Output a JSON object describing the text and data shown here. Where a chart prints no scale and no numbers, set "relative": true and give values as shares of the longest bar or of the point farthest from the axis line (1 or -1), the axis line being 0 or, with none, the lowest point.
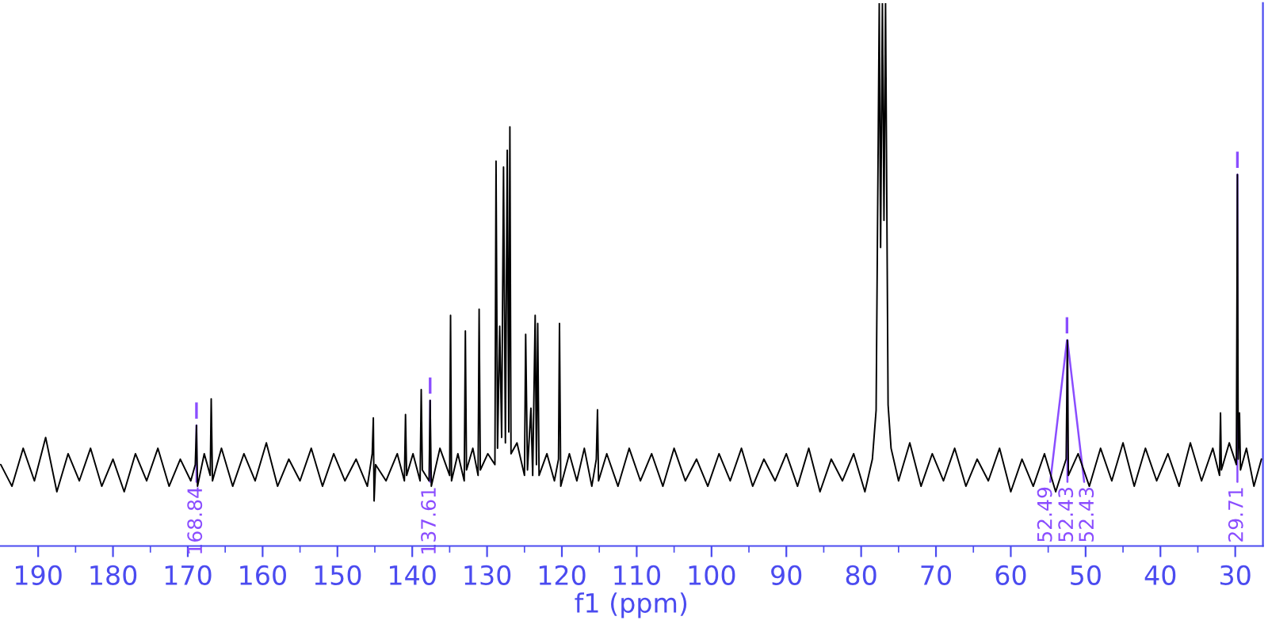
{
  "chart_data": {
    "type": "line",
    "relative": true,
    "xlabel": "f1 (ppm)",
    "xlim": [
      195.1,
      26.3
    ],
    "xticks": [
      190,
      180,
      170,
      160,
      150,
      140,
      130,
      120,
      110,
      100,
      90,
      80,
      70,
      60,
      50,
      40,
      30,
      {
        "value": 185,
        "label": null
      },
      {
        "value": 175,
        "label": null
      },
      {
        "value": 165,
        "label": null
      },
      {
        "value": 155,
        "label": null
      },
      {
        "value": 145,
        "label": null
      },
      {
        "value": 135,
        "label": null
      },
      {
        "value": 125,
        "label": null
      },
      {
        "value": 115,
        "label": null
      },
      {
        "value": 105,
        "label": null
      },
      {
        "value": 95,
        "label": null
      },
      {
        "value": 85,
        "label": null
      },
      {
        "value": 75,
        "label": null
      },
      {
        "value": 65,
        "label": null
      },
      {
        "value": 55,
        "label": null
      },
      {
        "value": 45,
        "label": null
      },
      {
        "value": 35,
        "label": null
      }
    ],
    "tick_labels": "x",
    "grid": false,
    "legend": false,
    "marker": "none",
    "line_style": "solid",
    "series": [
      {
        "color": "#000000",
        "x": [
          195.0,
          193.5,
          192.0,
          190.5,
          189.0,
          187.5,
          186.0,
          184.5,
          183.0,
          181.5,
          180.0,
          178.5,
          177.0,
          175.5,
          174.0,
          172.5,
          171.0,
          169.6,
          169.0,
          168.84,
          168.7,
          167.8,
          167.0,
          166.87,
          166.7,
          165.5,
          164.0,
          162.5,
          161.0,
          159.5,
          158.0,
          156.5,
          155.0,
          153.5,
          152.0,
          150.5,
          149.0,
          147.5,
          146.0,
          145.35,
          145.2,
          145.1,
          144.9,
          143.5,
          142.0,
          141.05,
          140.9,
          140.75,
          139.9,
          138.95,
          138.8,
          138.65,
          137.75,
          137.61,
          137.45,
          136.3,
          135.0,
          134.88,
          134.75,
          133.9,
          133.05,
          132.9,
          132.75,
          131.9,
          131.2,
          131.06,
          130.9,
          129.9,
          128.95,
          128.8,
          128.6,
          128.31,
          128.05,
          127.8,
          127.55,
          127.3,
          127.1,
          126.95,
          126.8,
          126.0,
          125.0,
          124.84,
          124.6,
          124.14,
          123.9,
          123.57,
          123.4,
          123.23,
          123.05,
          122.0,
          121.0,
          120.45,
          120.32,
          120.15,
          119.0,
          118.0,
          117.0,
          116.0,
          115.4,
          115.24,
          115.1,
          114.0,
          112.5,
          111.0,
          109.5,
          108.0,
          106.5,
          105.0,
          103.5,
          102.0,
          100.5,
          99.0,
          97.5,
          96.0,
          94.5,
          93.0,
          91.5,
          90.0,
          88.5,
          87.0,
          85.5,
          84.0,
          82.5,
          81.0,
          79.5,
          78.5,
          78.0,
          77.58,
          77.4,
          77.16,
          76.95,
          76.74,
          76.4,
          76.0,
          75.0,
          73.5,
          72.0,
          70.5,
          69.0,
          67.5,
          66.0,
          64.5,
          63.0,
          61.5,
          60.0,
          58.5,
          57.0,
          55.5,
          54.0,
          52.6,
          52.43,
          52.3,
          51.0,
          49.5,
          48.0,
          46.5,
          45.0,
          43.5,
          42.0,
          40.5,
          39.0,
          37.5,
          36.0,
          34.5,
          33.0,
          32.1,
          31.97,
          31.85,
          30.8,
          29.85,
          29.71,
          29.6,
          29.43,
          29.3,
          28.5,
          27.5,
          26.5
        ],
        "values": [
          0.15,
          0.11,
          0.18,
          0.12,
          0.2,
          0.1,
          0.17,
          0.12,
          0.18,
          0.11,
          0.16,
          0.1,
          0.17,
          0.12,
          0.18,
          0.11,
          0.16,
          0.12,
          0.15,
          0.222,
          0.11,
          0.17,
          0.13,
          0.271,
          0.12,
          0.18,
          0.11,
          0.17,
          0.12,
          0.19,
          0.11,
          0.16,
          0.12,
          0.18,
          0.11,
          0.17,
          0.12,
          0.16,
          0.11,
          0.17,
          0.236,
          0.083,
          0.15,
          0.12,
          0.17,
          0.12,
          0.242,
          0.13,
          0.17,
          0.12,
          0.288,
          0.14,
          0.12,
          0.268,
          0.11,
          0.18,
          0.13,
          0.425,
          0.12,
          0.17,
          0.12,
          0.396,
          0.14,
          0.18,
          0.13,
          0.436,
          0.14,
          0.17,
          0.15,
          0.709,
          0.18,
          0.405,
          0.2,
          0.698,
          0.19,
          0.729,
          0.21,
          0.772,
          0.17,
          0.19,
          0.13,
          0.39,
          0.14,
          0.254,
          0.13,
          0.425,
          0.15,
          0.41,
          0.13,
          0.17,
          0.12,
          0.16,
          0.41,
          0.11,
          0.17,
          0.12,
          0.18,
          0.11,
          0.16,
          0.251,
          0.12,
          0.17,
          0.11,
          0.18,
          0.12,
          0.17,
          0.11,
          0.18,
          0.12,
          0.16,
          0.11,
          0.17,
          0.12,
          0.18,
          0.11,
          0.16,
          0.12,
          0.17,
          0.11,
          0.18,
          0.1,
          0.16,
          0.12,
          0.17,
          0.1,
          0.16,
          0.25,
          1,
          0.55,
          1,
          0.6,
          1,
          0.26,
          0.18,
          0.12,
          0.19,
          0.11,
          0.17,
          0.12,
          0.18,
          0.11,
          0.16,
          0.12,
          0.18,
          0.1,
          0.16,
          0.11,
          0.17,
          0.1,
          0.16,
          0.379,
          0.13,
          0.17,
          0.11,
          0.18,
          0.12,
          0.19,
          0.11,
          0.18,
          0.12,
          0.17,
          0.11,
          0.19,
          0.12,
          0.18,
          0.13,
          0.245,
          0.14,
          0.19,
          0.15,
          0.684,
          0.16,
          0.245,
          0.14,
          0.18,
          0.11,
          0.16
        ]
      }
    ],
    "annotations": [
      {
        "text": "168.84",
        "x": 168.84,
        "y": 0.222
      },
      {
        "text": "137.61",
        "x": 137.61,
        "y": 0.268
      },
      {
        "text": "52.49",
        "x": 52.49,
        "y": 0.379
      },
      {
        "text": "52.43",
        "x": 52.43,
        "y": 0.379
      },
      {
        "text": "52.43",
        "x": 52.43,
        "y": 0.379
      },
      {
        "text": "29.71",
        "x": 29.71,
        "y": 0.684
      }
    ]
  }
}
